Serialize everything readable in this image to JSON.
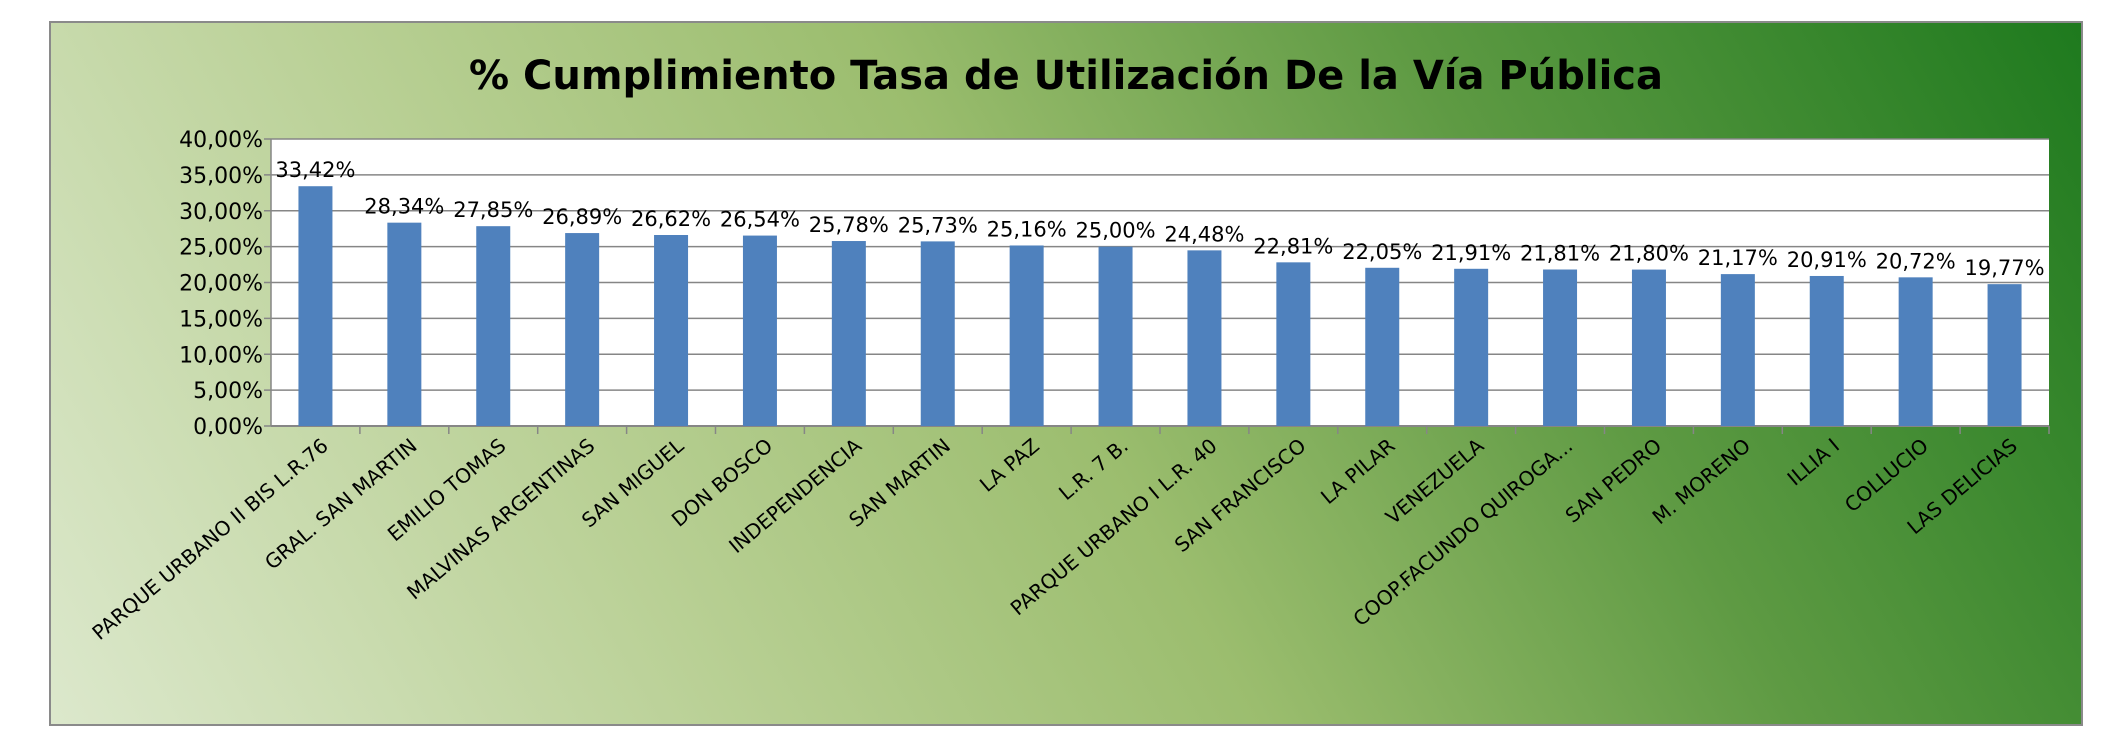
{
  "chart_data": {
    "type": "bar",
    "title": "% Cumplimiento Tasa de Utilización De la Vía Pública",
    "xlabel": "",
    "ylabel": "",
    "ylim": [
      0,
      40
    ],
    "y_ticks": [
      "0,00%",
      "5,00%",
      "10,00%",
      "15,00%",
      "20,00%",
      "25,00%",
      "30,00%",
      "35,00%",
      "40,00%"
    ],
    "grid": true,
    "bar_color": "#4f81bd",
    "categories": [
      "PARQUE URBANO II BIS L.R.76",
      "GRAL. SAN MARTIN",
      "EMILIO TOMAS",
      "MALVINAS ARGENTINAS",
      "SAN MIGUEL",
      "DON BOSCO",
      "INDEPENDENCIA",
      "SAN MARTIN",
      "LA PAZ",
      "L.R. 7 B.",
      "PARQUE URBANO I L.R. 40",
      "SAN  FRANCISCO",
      "LA PILAR",
      "VENEZUELA",
      "COOP.FACUNDO QUIROGA...",
      "SAN PEDRO",
      "M. MORENO",
      "ILLIA I",
      "COLLUCIO",
      "LAS DELICIAS"
    ],
    "values": [
      33.42,
      28.34,
      27.85,
      26.89,
      26.62,
      26.54,
      25.78,
      25.73,
      25.16,
      25.0,
      24.48,
      22.81,
      22.05,
      21.91,
      21.81,
      21.8,
      21.17,
      20.91,
      20.72,
      19.77
    ],
    "data_labels": [
      "33,42%",
      "28,34%",
      "27,85%",
      "26,89%",
      "26,62%",
      "26,54%",
      "25,78%",
      "25,73%",
      "25,16%",
      "25,00%",
      "24,48%",
      "22,81%",
      "22,05%",
      "21,91%",
      "21,81%",
      "21,80%",
      "21,17%",
      "20,91%",
      "20,72%",
      "19,77%"
    ]
  }
}
